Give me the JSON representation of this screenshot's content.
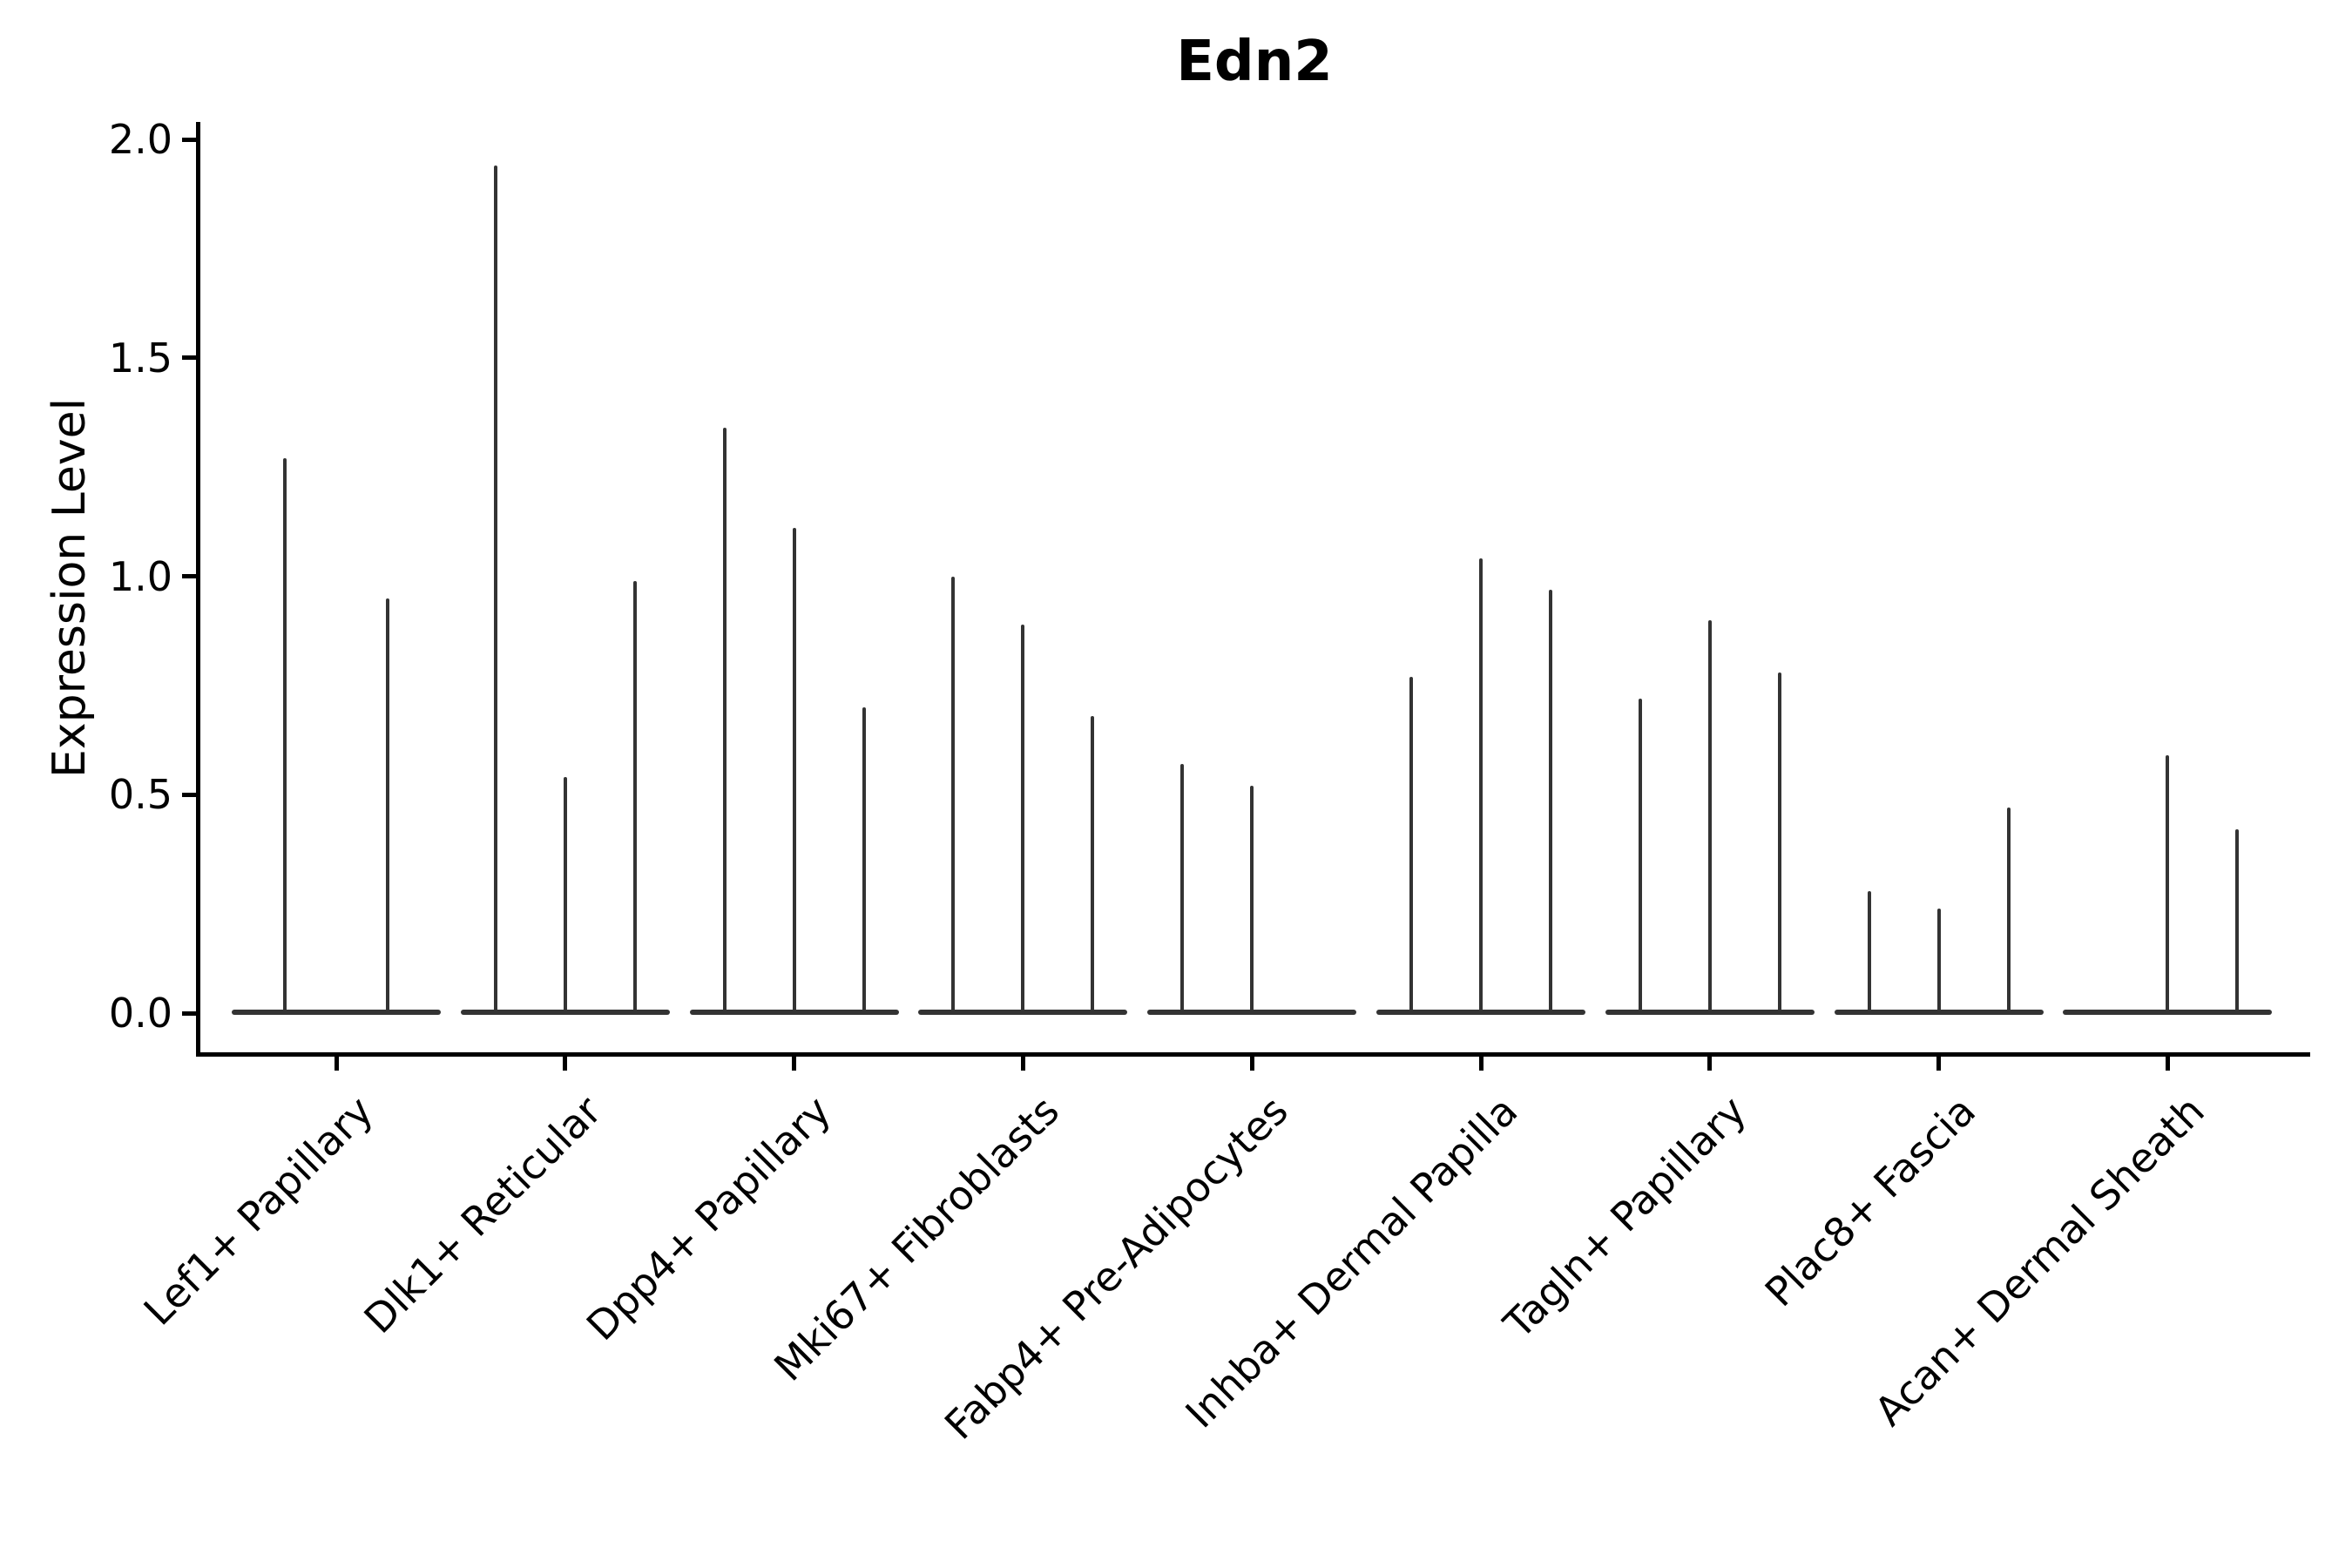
{
  "chart_data": {
    "type": "violin",
    "title": "Edn2",
    "ylabel": "Expression Level",
    "xlabel": "",
    "ylim": [
      0,
      2.05
    ],
    "grid": false,
    "legend": false,
    "x_tick_rotation": 45,
    "violin_style": "collapsed-needle-violins-on-flat-base",
    "yticks": [
      {
        "value": 0.0,
        "label": "0.0"
      },
      {
        "value": 0.5,
        "label": "0.5"
      },
      {
        "value": 1.0,
        "label": "1.0"
      },
      {
        "value": 1.5,
        "label": "1.5"
      },
      {
        "value": 2.0,
        "label": "2.0"
      }
    ],
    "categories": [
      {
        "label": "Lef1+ Papillary",
        "violins": [
          {
            "slot_offset": -59,
            "max": 1.27
          },
          {
            "slot_offset": 59,
            "max": 0.95
          }
        ]
      },
      {
        "label": "Dlk1+ Reticular",
        "violins": [
          {
            "slot_offset": -80,
            "max": 1.94
          },
          {
            "slot_offset": 0,
            "max": 0.54
          },
          {
            "slot_offset": 80,
            "max": 0.99
          }
        ]
      },
      {
        "label": "Dpp4+ Papillary",
        "violins": [
          {
            "slot_offset": -80,
            "max": 1.34
          },
          {
            "slot_offset": 0,
            "max": 1.11
          },
          {
            "slot_offset": 80,
            "max": 0.7
          }
        ]
      },
      {
        "label": "Mki67+ Fibroblasts",
        "violins": [
          {
            "slot_offset": -80,
            "max": 1.0
          },
          {
            "slot_offset": 0,
            "max": 0.89
          },
          {
            "slot_offset": 80,
            "max": 0.68
          }
        ]
      },
      {
        "label": "Fabp4+ Pre-Adipocytes",
        "violins": [
          {
            "slot_offset": -80,
            "max": 0.57
          },
          {
            "slot_offset": 0,
            "max": 0.52
          }
        ]
      },
      {
        "label": "Inhba+ Dermal Papilla",
        "violins": [
          {
            "slot_offset": -80,
            "max": 0.77
          },
          {
            "slot_offset": 0,
            "max": 1.04
          },
          {
            "slot_offset": 80,
            "max": 0.97
          }
        ]
      },
      {
        "label": "Tagln+ Papillary",
        "violins": [
          {
            "slot_offset": -80,
            "max": 0.72
          },
          {
            "slot_offset": 0,
            "max": 0.9
          },
          {
            "slot_offset": 80,
            "max": 0.78
          }
        ]
      },
      {
        "label": "Plac8+ Fascia",
        "violins": [
          {
            "slot_offset": -80,
            "max": 0.28
          },
          {
            "slot_offset": 0,
            "max": 0.24
          },
          {
            "slot_offset": 80,
            "max": 0.47
          }
        ]
      },
      {
        "label": "Acan+ Dermal Sheath",
        "violins": [
          {
            "slot_offset": 0,
            "max": 0.59
          },
          {
            "slot_offset": 80,
            "max": 0.42
          }
        ]
      }
    ],
    "colors": {
      "violin": "#333333",
      "axis": "#000000",
      "text": "#000000",
      "background": "#ffffff"
    }
  }
}
